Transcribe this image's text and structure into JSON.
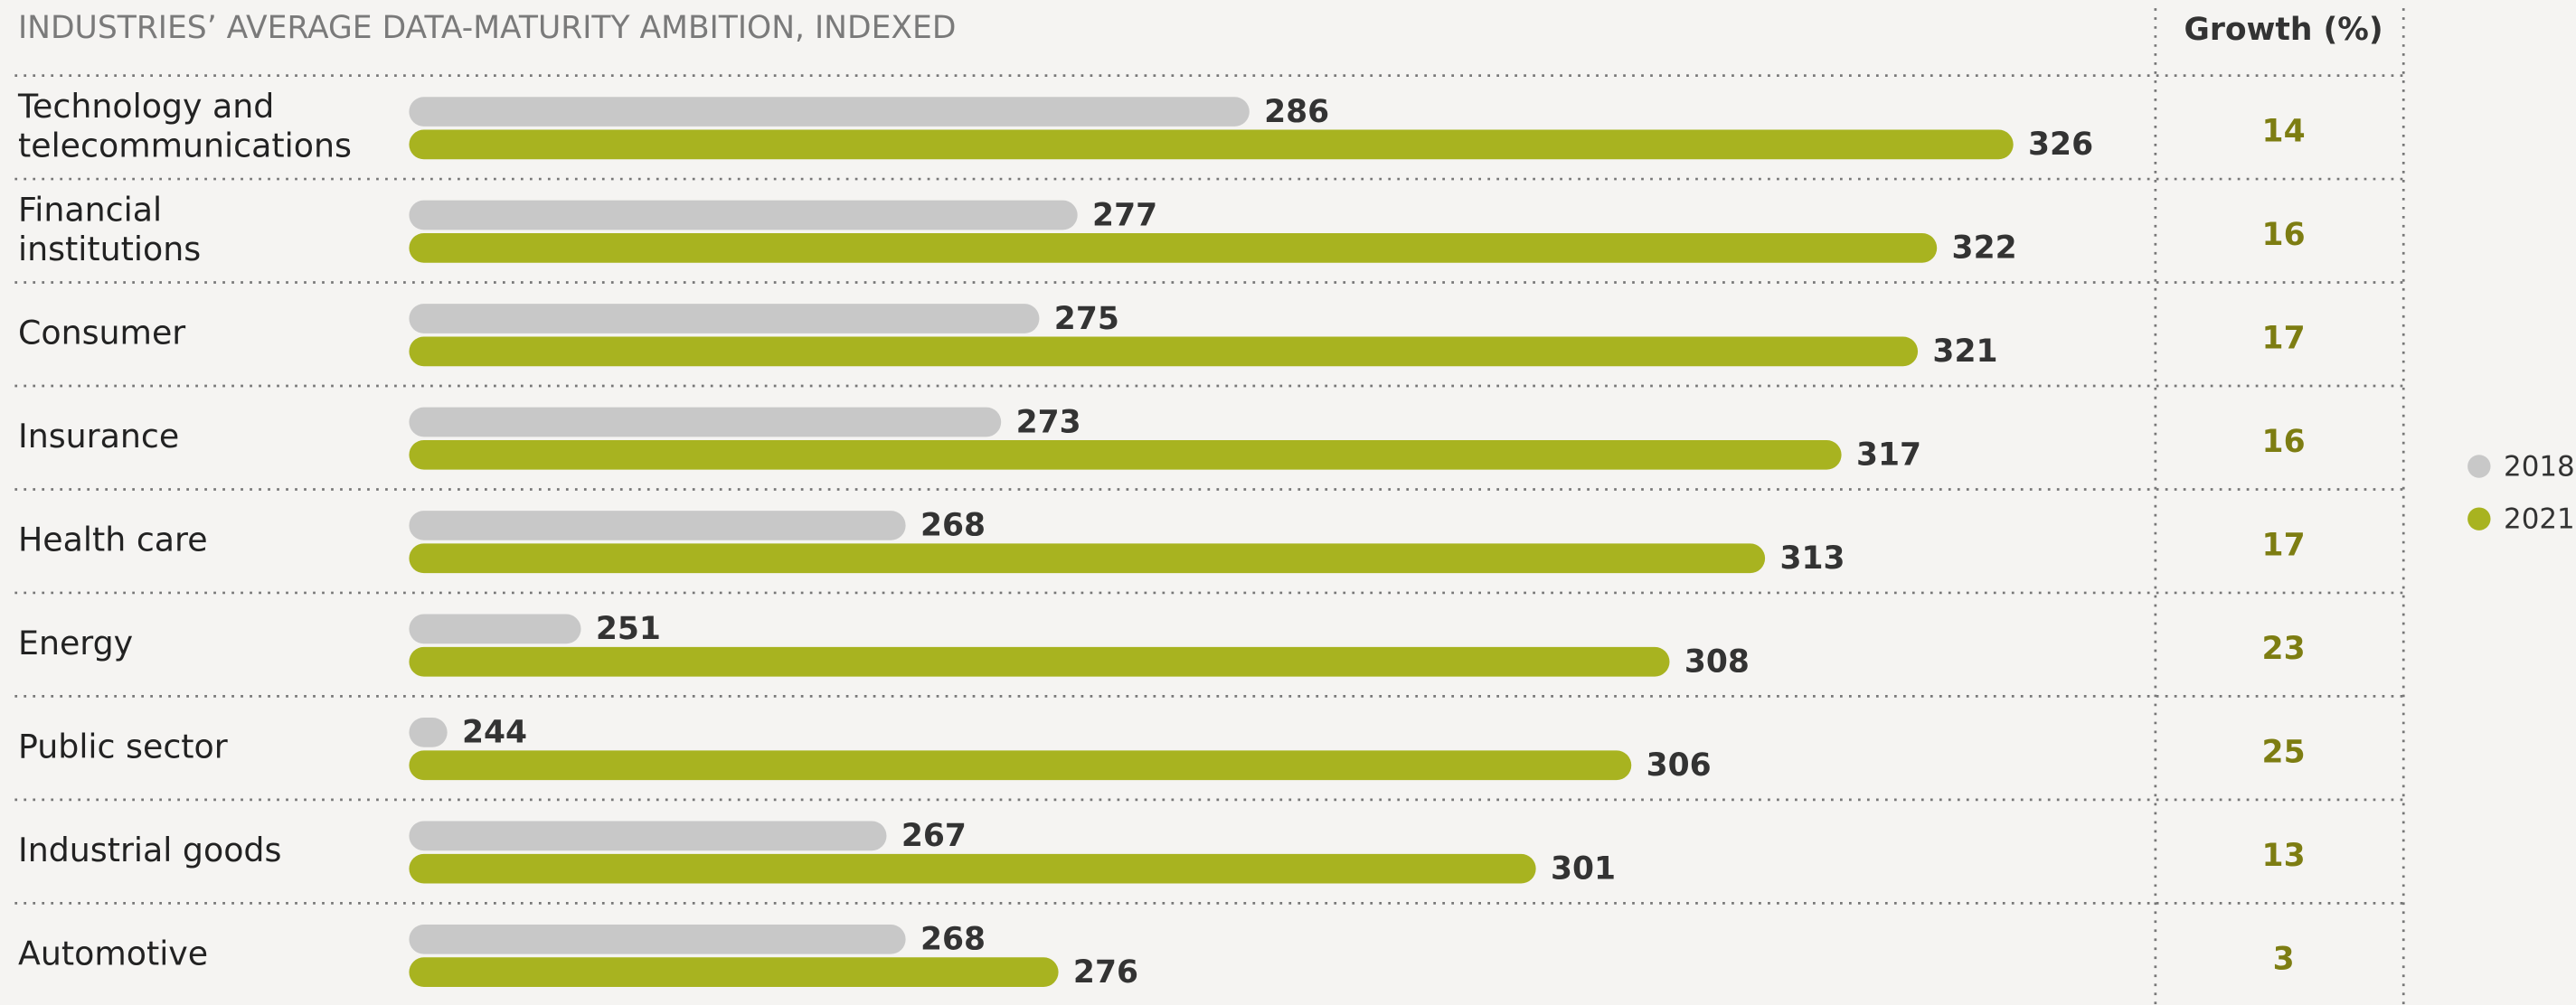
{
  "chart_data": {
    "type": "bar",
    "orientation": "horizontal",
    "title": "INDUSTRIES’ AVERAGE DATA-MATURITY AMBITION, INDEXED",
    "growth_title": "Growth (%)",
    "categories": [
      "Technology and telecommunications",
      "Financial institutions",
      "Consumer",
      "Insurance",
      "Health care",
      "Energy",
      "Public sector",
      "Industrial goods",
      "Automotive"
    ],
    "series": [
      {
        "name": "2018",
        "color": "#c8c8c8",
        "values": [
          286,
          277,
          275,
          273,
          268,
          251,
          244,
          267,
          268
        ]
      },
      {
        "name": "2021",
        "color": "#a8b320",
        "values": [
          326,
          322,
          321,
          317,
          313,
          308,
          306,
          301,
          276
        ]
      }
    ],
    "growth": [
      14,
      16,
      17,
      16,
      17,
      23,
      25,
      13,
      3
    ],
    "growth_color": "#7d7d12",
    "xlim": [
      242,
      330
    ],
    "legend": "right"
  }
}
